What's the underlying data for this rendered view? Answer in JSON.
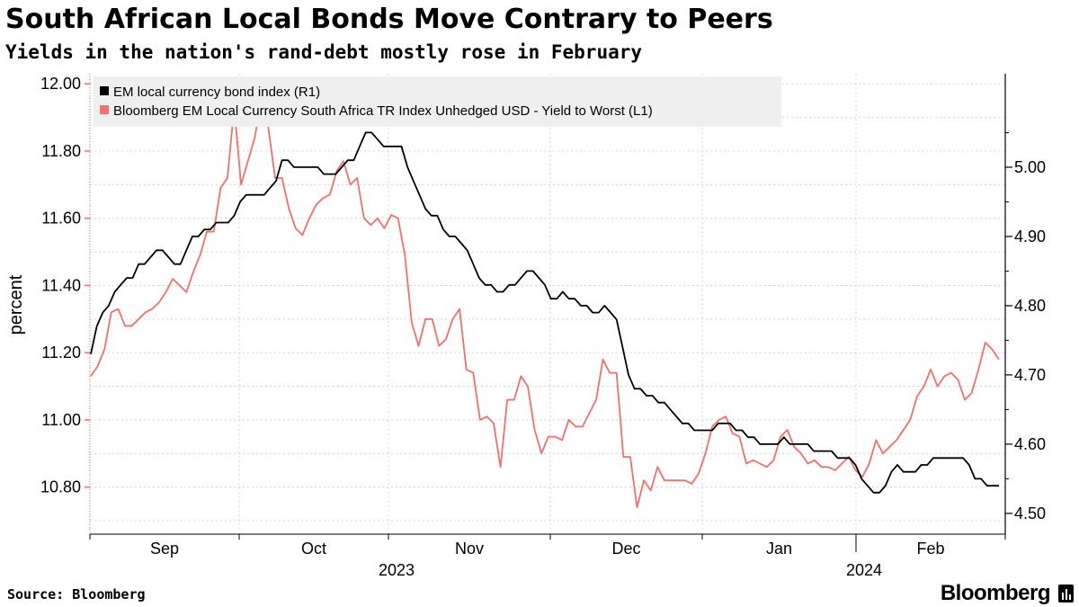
{
  "header": {
    "title": "South African Local Bonds Move Contrary to Peers",
    "subtitle": "Yields in the nation's rand-debt mostly rose in February"
  },
  "footer": {
    "source": "Source: Bloomberg",
    "brand": "Bloomberg"
  },
  "colors": {
    "em_series": "#000000",
    "sa_series": "#f0706c",
    "grid": "#d4d4d4",
    "legend_bg": "#efefef"
  },
  "chart_data": {
    "type": "line",
    "title": "South African Local Bonds Move Contrary to Peers",
    "subtitle": "Yields in the nation's rand-debt mostly rose in February",
    "ylabel_left": "percent",
    "ylim_left": [
      10.66,
      12.03
    ],
    "ylim_right": [
      4.47,
      5.135
    ],
    "yticks_left": [
      "12.00",
      "11.80",
      "11.60",
      "11.40",
      "11.20",
      "11.00",
      "10.80"
    ],
    "yticks_right": [
      "5.00",
      "4.90",
      "4.80",
      "4.70",
      "4.60",
      "4.50"
    ],
    "month_labels": [
      "Sep",
      "Oct",
      "Nov",
      "Dec",
      "Jan",
      "Feb"
    ],
    "year_labels": [
      "2023",
      "2024"
    ],
    "legend": [
      {
        "label": "EM local currency bond index (R1)",
        "axis": "right"
      },
      {
        "label": "Bloomberg EM Local Currency South Africa TR Index Unhedged USD - Yield to Worst (L1)",
        "axis": "left"
      }
    ],
    "series": [
      {
        "name": "EM local currency bond index (R1)",
        "axis": "right",
        "values": [
          4.73,
          4.77,
          4.79,
          4.8,
          4.82,
          4.83,
          4.84,
          4.84,
          4.86,
          4.86,
          4.87,
          4.88,
          4.88,
          4.87,
          4.86,
          4.86,
          4.88,
          4.9,
          4.9,
          4.91,
          4.91,
          4.92,
          4.92,
          4.92,
          4.93,
          4.95,
          4.96,
          4.96,
          4.96,
          4.96,
          4.97,
          4.98,
          5.01,
          5.01,
          5.0,
          5.0,
          5.0,
          5.0,
          5.0,
          4.99,
          4.99,
          4.99,
          5.0,
          5.01,
          5.01,
          5.03,
          5.05,
          5.05,
          5.04,
          5.03,
          5.03,
          5.03,
          5.03,
          5.0,
          4.98,
          4.96,
          4.94,
          4.93,
          4.93,
          4.91,
          4.9,
          4.9,
          4.89,
          4.88,
          4.86,
          4.84,
          4.83,
          4.83,
          4.82,
          4.82,
          4.83,
          4.83,
          4.84,
          4.85,
          4.85,
          4.84,
          4.83,
          4.81,
          4.81,
          4.82,
          4.81,
          4.81,
          4.8,
          4.8,
          4.79,
          4.79,
          4.8,
          4.79,
          4.78,
          4.74,
          4.7,
          4.68,
          4.68,
          4.67,
          4.67,
          4.66,
          4.66,
          4.65,
          4.64,
          4.63,
          4.63,
          4.62,
          4.62,
          4.62,
          4.62,
          4.63,
          4.63,
          4.63,
          4.62,
          4.62,
          4.61,
          4.61,
          4.6,
          4.6,
          4.6,
          4.6,
          4.61,
          4.6,
          4.6,
          4.6,
          4.6,
          4.59,
          4.59,
          4.59,
          4.59,
          4.58,
          4.58,
          4.58,
          4.57,
          4.55,
          4.54,
          4.53,
          4.53,
          4.54,
          4.56,
          4.57,
          4.56,
          4.56,
          4.56,
          4.57,
          4.57,
          4.58,
          4.58,
          4.58,
          4.58,
          4.58,
          4.58,
          4.57,
          4.55,
          4.55,
          4.54,
          4.54,
          4.54
        ]
      },
      {
        "name": "Bloomberg EM Local Currency South Africa TR Index Unhedged USD - Yield to Worst (L1)",
        "axis": "left",
        "values": [
          11.13,
          11.16,
          11.21,
          11.32,
          11.33,
          11.28,
          11.28,
          11.3,
          11.32,
          11.33,
          11.35,
          11.38,
          11.42,
          11.4,
          11.38,
          11.44,
          11.49,
          11.56,
          11.56,
          11.69,
          11.72,
          11.93,
          11.7,
          11.77,
          11.84,
          11.95,
          11.87,
          11.72,
          11.72,
          11.63,
          11.57,
          11.55,
          11.6,
          11.64,
          11.66,
          11.67,
          11.74,
          11.77,
          11.7,
          11.72,
          11.6,
          11.58,
          11.6,
          11.57,
          11.61,
          11.6,
          11.49,
          11.29,
          11.22,
          11.3,
          11.3,
          11.22,
          11.24,
          11.3,
          11.33,
          11.15,
          11.14,
          11.0,
          11.01,
          10.99,
          10.86,
          11.06,
          11.06,
          11.13,
          11.1,
          10.97,
          10.9,
          10.95,
          10.95,
          10.94,
          11.0,
          10.98,
          10.98,
          11.02,
          11.06,
          11.18,
          11.14,
          11.14,
          10.89,
          10.89,
          10.74,
          10.82,
          10.79,
          10.86,
          10.82,
          10.82,
          10.82,
          10.82,
          10.81,
          10.84,
          10.9,
          10.98,
          11.0,
          11.01,
          10.96,
          10.95,
          10.87,
          10.88,
          10.87,
          10.86,
          10.88,
          10.95,
          10.97,
          10.92,
          10.9,
          10.87,
          10.88,
          10.86,
          10.86,
          10.85,
          10.87,
          10.89,
          10.85,
          10.83,
          10.87,
          10.94,
          10.9,
          10.92,
          10.94,
          10.97,
          11.0,
          11.07,
          11.1,
          11.15,
          11.1,
          11.13,
          11.14,
          11.12,
          11.06,
          11.08,
          11.15,
          11.23,
          11.21,
          11.18
        ]
      }
    ]
  }
}
